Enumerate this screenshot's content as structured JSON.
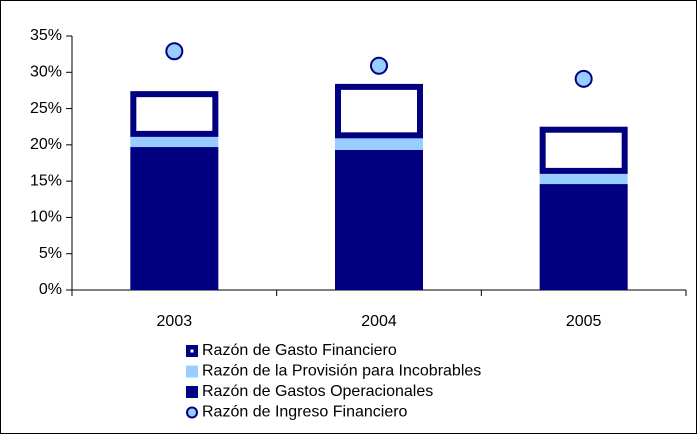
{
  "chart_data": {
    "type": "bar",
    "stacked": true,
    "categories": [
      "2003",
      "2004",
      "2005"
    ],
    "series": [
      {
        "name": "Razón de Gastos Operacionales",
        "type": "bar",
        "color": "#000080",
        "values": [
          19.7,
          19.3,
          14.6
        ]
      },
      {
        "name": "Razón de la Provisión para Incobrables",
        "type": "bar",
        "color": "#99ccff",
        "values": [
          1.4,
          1.6,
          1.4
        ]
      },
      {
        "name": "Razón de Gasto Financiero",
        "type": "bar",
        "color": "#000080",
        "fill": "#ffffff",
        "values": [
          6.3,
          7.5,
          6.5
        ]
      },
      {
        "name": "Razón de Ingreso Financiero",
        "type": "scatter",
        "color": "#99ccff",
        "edge": "#000080",
        "values": [
          32.9,
          30.9,
          29.1
        ]
      }
    ],
    "ylim": [
      0,
      35
    ],
    "yticks": [
      {
        "value": 0,
        "label": "0%"
      },
      {
        "value": 5,
        "label": "5%"
      },
      {
        "value": 10,
        "label": "10%"
      },
      {
        "value": 15,
        "label": "15%"
      },
      {
        "value": 20,
        "label": "20%"
      },
      {
        "value": 25,
        "label": "25%"
      },
      {
        "value": 30,
        "label": "30%"
      },
      {
        "value": 35,
        "label": "35%"
      }
    ],
    "grid": false
  }
}
